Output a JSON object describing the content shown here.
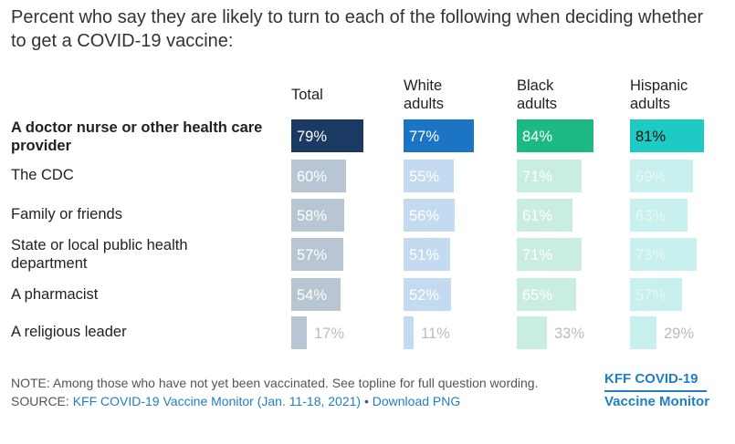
{
  "title": "Percent who say they are likely to turn to each of the following when deciding whether to get a COVID-19 vaccine:",
  "columns": [
    {
      "label": "Total",
      "strong_color": "#1a3a63",
      "light_color": "#b8c6d4",
      "light_text": "#ffffff"
    },
    {
      "label": "White adults",
      "strong_color": "#1c75c4",
      "light_color": "#c4daf0",
      "light_text": "#ffffff"
    },
    {
      "label": "Black adults",
      "strong_color": "#1db985",
      "light_color": "#c9eedf",
      "light_text": "#ffffff"
    },
    {
      "label": "Hispanic adults",
      "strong_color": "#1ecbc4",
      "light_color": "#c8f0ee",
      "light_text": "#e7f7f6"
    }
  ],
  "rows": [
    {
      "label": "A doctor nurse or other health care provider",
      "emphasis": true,
      "labels": [
        "79%",
        "77%",
        "84%",
        "81%"
      ]
    },
    {
      "label": "The CDC",
      "emphasis": false,
      "labels": [
        "60%",
        "55%",
        "71%",
        "69%"
      ]
    },
    {
      "label": "Family or friends",
      "emphasis": false,
      "labels": [
        "58%",
        "56%",
        "61%",
        "63%"
      ]
    },
    {
      "label": "State or local public health department",
      "emphasis": false,
      "labels": [
        "57%",
        "51%",
        "71%",
        "73%"
      ]
    },
    {
      "label": "A pharmacist",
      "emphasis": false,
      "labels": [
        "54%",
        "52%",
        "65%",
        "57%"
      ]
    },
    {
      "label": "A religious leader",
      "emphasis": false,
      "labels": [
        "17%",
        "11%",
        "33%",
        "29%"
      ]
    }
  ],
  "chart_data": {
    "type": "bar",
    "title": "Percent who say they are likely to turn to each of the following when deciding whether to get a COVID-19 vaccine:",
    "categories": [
      "A doctor nurse or other health care provider",
      "The CDC",
      "Family or friends",
      "State or local public health department",
      "A pharmacist",
      "A religious leader"
    ],
    "series": [
      {
        "name": "Total",
        "values": [
          79,
          60,
          58,
          57,
          54,
          17
        ]
      },
      {
        "name": "White adults",
        "values": [
          77,
          55,
          56,
          51,
          52,
          11
        ]
      },
      {
        "name": "Black adults",
        "values": [
          84,
          71,
          61,
          71,
          65,
          33
        ]
      },
      {
        "name": "Hispanic adults",
        "values": [
          81,
          69,
          63,
          73,
          57,
          29
        ]
      }
    ],
    "ylim": [
      0,
      100
    ]
  },
  "footer": {
    "note": "NOTE: Among those who have not yet been vaccinated. See topline for full question wording.",
    "source_prefix": "SOURCE: ",
    "source_link": "KFF COVID-19 Vaccine Monitor (Jan. 11-18, 2021)",
    "separator": " • ",
    "download": "Download PNG"
  },
  "brand": {
    "line1": "KFF COVID-19",
    "line2": "Vaccine Monitor"
  }
}
